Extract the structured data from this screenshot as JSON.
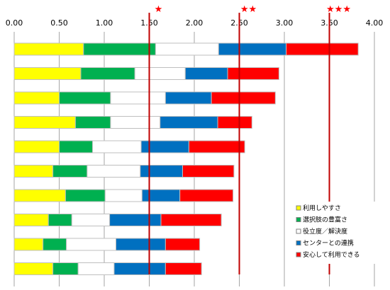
{
  "chart_data": {
    "type": "bar",
    "orientation": "horizontal",
    "stacked": true,
    "xlim": [
      0,
      4.0
    ],
    "x_ticks": [
      "0.00",
      "0.50",
      "1.00",
      "1.50",
      "2.00",
      "2.50",
      "3.00",
      "3.50",
      "4.00"
    ],
    "tick_values": [
      0,
      0.5,
      1.0,
      1.5,
      2.0,
      2.5,
      3.0,
      3.5,
      4.0
    ],
    "grid": "vertical",
    "legend_position": "bottom-right",
    "categories": [
      "",
      "",
      "",
      "",
      "",
      "",
      "",
      "",
      "",
      ""
    ],
    "series": [
      {
        "name": "利用しやすさ",
        "color": "#ffff00",
        "values": [
          0.77,
          0.74,
          0.5,
          0.68,
          0.5,
          0.43,
          0.57,
          0.38,
          0.32,
          0.43
        ]
      },
      {
        "name": "選択肢の豊富さ",
        "color": "#00b050",
        "values": [
          0.8,
          0.6,
          0.57,
          0.39,
          0.37,
          0.38,
          0.44,
          0.26,
          0.26,
          0.28
        ]
      },
      {
        "name": "役立度／解決度",
        "color": "#ffffff",
        "values": [
          0.7,
          0.56,
          0.61,
          0.55,
          0.54,
          0.59,
          0.41,
          0.42,
          0.55,
          0.4
        ]
      },
      {
        "name": "センターとの連携",
        "color": "#0070c0",
        "values": [
          0.75,
          0.47,
          0.51,
          0.64,
          0.53,
          0.47,
          0.42,
          0.57,
          0.55,
          0.57
        ]
      },
      {
        "name": "安心して利用できる",
        "color": "#ff0000",
        "values": [
          0.8,
          0.57,
          0.71,
          0.38,
          0.62,
          0.57,
          0.59,
          0.67,
          0.38,
          0.4
        ]
      }
    ],
    "reference_lines": [
      {
        "value": 1.5,
        "star_label": "★"
      },
      {
        "value": 2.5,
        "star_label": "★★"
      },
      {
        "value": 3.5,
        "star_label": "★★★"
      }
    ],
    "reference_line_color": "#c00000"
  }
}
